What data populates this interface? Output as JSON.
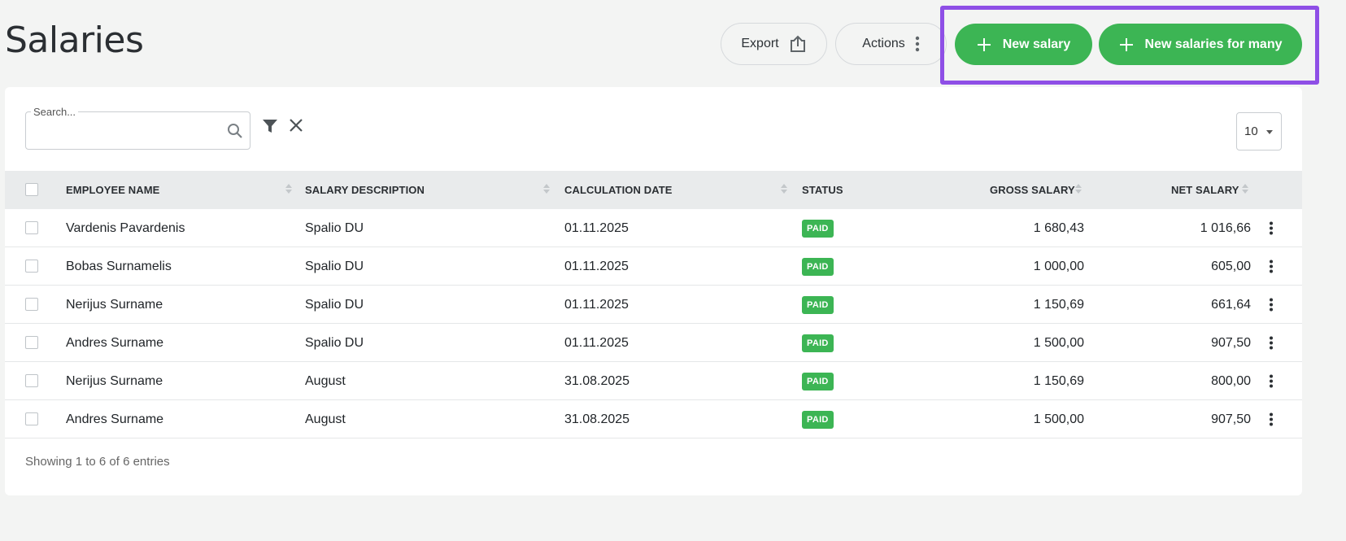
{
  "page": {
    "title": "Salaries"
  },
  "toolbar": {
    "export_label": "Export",
    "actions_label": "Actions",
    "new_salary_label": "New salary",
    "new_many_label": "New salaries for many"
  },
  "search": {
    "label": "Search...",
    "value": ""
  },
  "page_size": {
    "value": "10"
  },
  "table": {
    "headers": {
      "employee": "EMPLOYEE NAME",
      "description": "SALARY DESCRIPTION",
      "date": "CALCULATION DATE",
      "status": "STATUS",
      "gross": "GROSS SALARY",
      "net": "NET SALARY"
    },
    "rows": [
      {
        "employee": "Vardenis Pavardenis",
        "description": "Spalio DU",
        "date": "01.11.2025",
        "status": "PAID",
        "gross": "1 680,43",
        "net": "1 016,66"
      },
      {
        "employee": "Bobas Surnamelis",
        "description": "Spalio DU",
        "date": "01.11.2025",
        "status": "PAID",
        "gross": "1 000,00",
        "net": "605,00"
      },
      {
        "employee": "Nerijus Surname",
        "description": "Spalio DU",
        "date": "01.11.2025",
        "status": "PAID",
        "gross": "1 150,69",
        "net": "661,64"
      },
      {
        "employee": "Andres Surname",
        "description": "Spalio DU",
        "date": "01.11.2025",
        "status": "PAID",
        "gross": "1 500,00",
        "net": "907,50"
      },
      {
        "employee": "Nerijus Surname",
        "description": "August",
        "date": "31.08.2025",
        "status": "PAID",
        "gross": "1 150,69",
        "net": "800,00"
      },
      {
        "employee": "Andres Surname",
        "description": "August",
        "date": "31.08.2025",
        "status": "PAID",
        "gross": "1 500,00",
        "net": "907,50"
      }
    ]
  },
  "footer": {
    "summary": "Showing 1 to 6 of 6 entries"
  },
  "colors": {
    "accent_green": "#3cb554",
    "highlight": "#8e4fe6"
  },
  "icons": {
    "export": "upload-box-icon",
    "actions": "kebab-icon",
    "add": "plus-icon",
    "search": "search-icon",
    "filter": "filter-icon",
    "clear": "close-icon"
  }
}
